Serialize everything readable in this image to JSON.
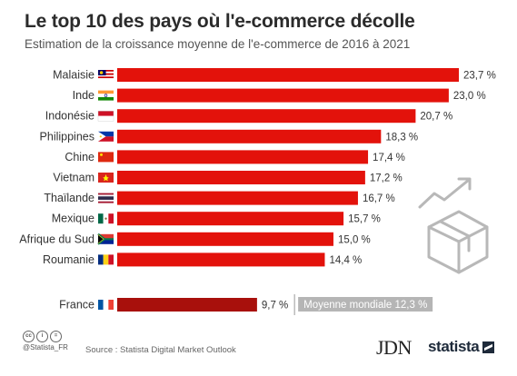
{
  "title": "Le top 10 des pays où l'e-commerce décolle",
  "subtitle": "Estimation de la croissance moyenne de l'e-commerce de 2016 à 2021",
  "colors": {
    "bar": "#e3120b",
    "bar_france": "#a8100c",
    "avg_box": "#b5b5b5",
    "icon": "#b8b8b8"
  },
  "chart_data": {
    "type": "bar",
    "orientation": "horizontal",
    "categories": [
      "Malaisie",
      "Inde",
      "Indonésie",
      "Philippines",
      "Chine",
      "Vietnam",
      "Thaïlande",
      "Mexique",
      "Afrique du Sud",
      "Roumanie"
    ],
    "values": [
      23.7,
      23.0,
      20.7,
      18.3,
      17.4,
      17.2,
      16.7,
      15.7,
      15.0,
      14.4
    ],
    "labels": [
      "23,7 %",
      "23,0 %",
      "20,7 %",
      "18,3 %",
      "17,4 %",
      "17,2 %",
      "16,7 %",
      "15,7 %",
      "15,0 %",
      "14,4 %"
    ],
    "extra": {
      "category": "France",
      "value": 9.7,
      "label": "9,7 %"
    },
    "annotation": "Moyenne mondiale 12,3 %",
    "xlim": [
      0,
      23.7
    ],
    "flags": [
      "flag-malaysia",
      "flag-india",
      "flag-indonesia",
      "flag-philippines",
      "flag-china",
      "flag-vietnam",
      "flag-thailand",
      "flag-mexico",
      "flag-south-africa",
      "flag-romania"
    ],
    "extra_flag": "flag-france"
  },
  "footer": {
    "handle": "@Statista_FR",
    "source": "Source : Statista Digital Market Outlook",
    "brand_jdn": "JDN",
    "brand_statista": "statista",
    "cc_icons": [
      "cc",
      "i",
      "="
    ]
  }
}
